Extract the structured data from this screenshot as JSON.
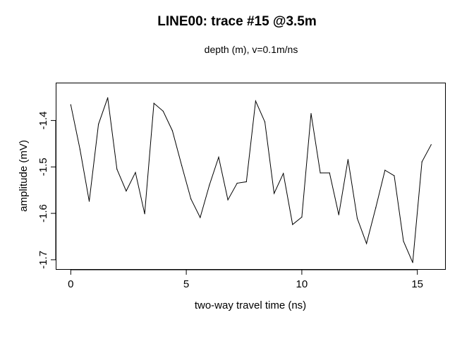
{
  "chart_data": {
    "type": "line",
    "title": "LINE00: trace #15  @3.5m",
    "subtitle": "depth (m),   v=0.1m/ns",
    "xlabel": "two-way travel time (ns)",
    "ylabel": "amplitude (mV)",
    "xlim": [
      -0.62,
      16.2
    ],
    "ylim": [
      -1.72,
      -1.32
    ],
    "xticks": [
      0,
      5,
      10,
      15
    ],
    "xtick_labels": [
      "0",
      "5",
      "10",
      "15"
    ],
    "yticks": [
      -1.4,
      -1.5,
      -1.6,
      -1.7
    ],
    "ytick_labels": [
      "-1.4",
      "-1.5",
      "-1.6",
      "-1.7"
    ],
    "grid": false,
    "series": [
      {
        "x": [
          0,
          0.4,
          0.8,
          1.2,
          1.6,
          2.0,
          2.4,
          2.8,
          3.2,
          3.6,
          4.0,
          4.4,
          4.8,
          5.2,
          5.6,
          6.0,
          6.4,
          6.8,
          7.2,
          7.6,
          8.0,
          8.4,
          8.8,
          9.2,
          9.6,
          10.0,
          10.4,
          10.8,
          11.2,
          11.6,
          12.0,
          12.4,
          12.8,
          13.2,
          13.6,
          14.0,
          14.4,
          14.8,
          15.2,
          15.6
        ],
        "y": [
          -1.366,
          -1.462,
          -1.574,
          -1.408,
          -1.351,
          -1.505,
          -1.552,
          -1.512,
          -1.601,
          -1.363,
          -1.38,
          -1.422,
          -1.497,
          -1.569,
          -1.609,
          -1.539,
          -1.479,
          -1.571,
          -1.535,
          -1.532,
          -1.358,
          -1.403,
          -1.557,
          -1.514,
          -1.624,
          -1.608,
          -1.385,
          -1.513,
          -1.513,
          -1.603,
          -1.484,
          -1.611,
          -1.665,
          -1.588,
          -1.507,
          -1.519,
          -1.66,
          -1.706,
          -1.489,
          -1.452
        ]
      }
    ]
  }
}
